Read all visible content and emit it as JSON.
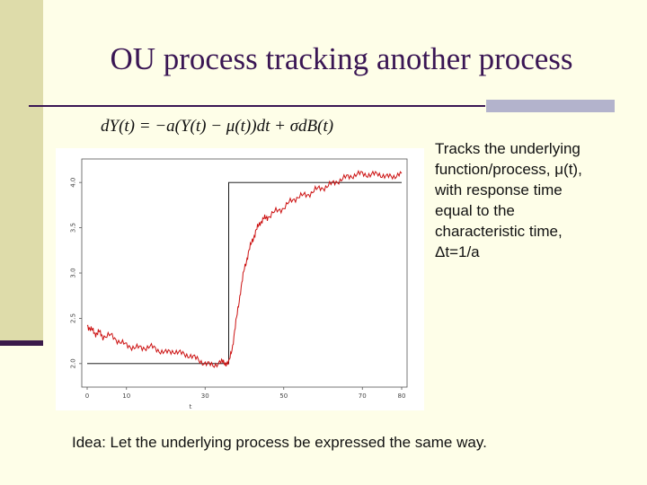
{
  "slide": {
    "title": "OU process tracking another process",
    "equation": "dY(t) = −a(Y(t) − μ(t))dt + σdB(t)",
    "side_text_lines": [
      "Tracks the underlying",
      "function/process, μ(t),",
      "with response time",
      "equal to the",
      "characteristic time,",
      "Δt=1/a"
    ],
    "idea": "Idea: Let the underlying process be expressed the same way."
  },
  "colors": {
    "title": "#3a1654",
    "background": "#fefee8",
    "accent_bar": "#dedcaa",
    "series_red": "#cc1111",
    "series_black": "#000000"
  },
  "chart_data": {
    "type": "line",
    "xlabel": "t",
    "ylabel": "",
    "xlim": [
      0,
      80
    ],
    "ylim": [
      1.8,
      4.2
    ],
    "x_ticks": [
      "0",
      "10",
      "30",
      "50",
      "70",
      "80"
    ],
    "x_tick_values": [
      0,
      10,
      30,
      50,
      70,
      80
    ],
    "y_ticks": [
      "2.0",
      "2.5",
      "3.0",
      "3.5",
      "4.0"
    ],
    "y_tick_values": [
      2.0,
      2.5,
      3.0,
      3.5,
      4.0
    ],
    "series": [
      {
        "color": "#000000",
        "x": [
          0,
          36,
          36,
          80
        ],
        "values": [
          2.0,
          2.0,
          4.0,
          4.0
        ]
      },
      {
        "color": "#cc1111",
        "x": [
          0,
          1,
          2,
          3,
          4,
          6,
          8,
          10,
          12,
          14,
          16,
          18,
          20,
          22,
          24,
          26,
          28,
          30,
          32,
          34,
          35,
          36,
          37,
          38,
          39,
          40,
          41,
          42,
          43,
          44,
          45,
          46,
          48,
          50,
          52,
          54,
          56,
          58,
          60,
          62,
          64,
          66,
          68,
          70,
          72,
          74,
          76,
          78,
          80
        ],
        "values": [
          2.42,
          2.38,
          2.33,
          2.35,
          2.3,
          2.31,
          2.25,
          2.2,
          2.18,
          2.17,
          2.19,
          2.15,
          2.12,
          2.14,
          2.11,
          2.09,
          2.05,
          2.0,
          1.98,
          2.02,
          2.01,
          2.0,
          2.2,
          2.5,
          2.8,
          3.05,
          3.22,
          3.36,
          3.47,
          3.56,
          3.6,
          3.62,
          3.68,
          3.72,
          3.8,
          3.85,
          3.86,
          3.92,
          3.94,
          3.98,
          4.02,
          4.06,
          4.08,
          4.1,
          4.08,
          4.1,
          4.06,
          4.07,
          4.1
        ]
      }
    ]
  }
}
